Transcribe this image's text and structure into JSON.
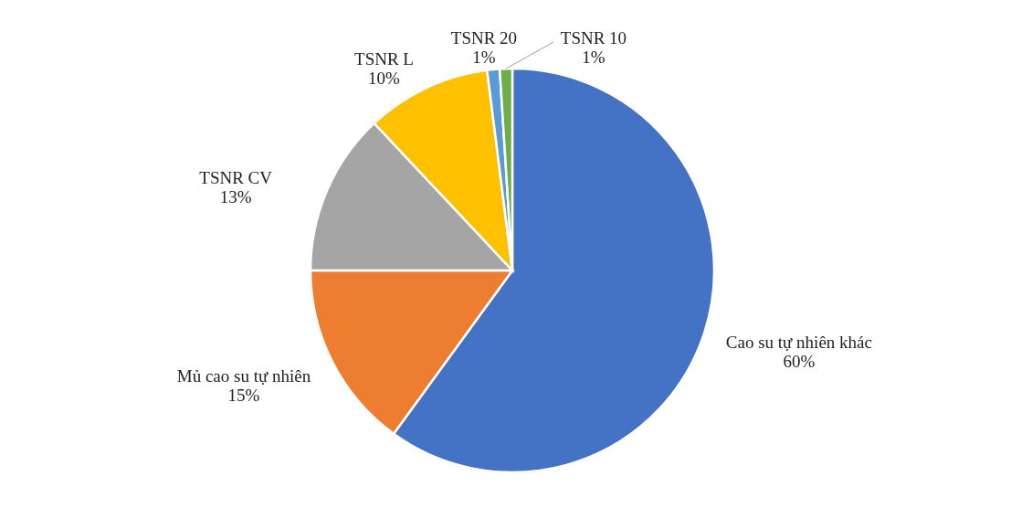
{
  "chart_data": {
    "type": "pie",
    "categories": [
      "Cao su tự nhiên khác",
      "Mủ cao su tự nhiên",
      "TSNR CV",
      "TSNR L",
      "TSNR 20",
      "TSNR 10"
    ],
    "values": [
      60,
      15,
      13,
      10,
      1,
      1
    ],
    "value_labels": [
      "60%",
      "15%",
      "13%",
      "10%",
      "1%",
      "1%"
    ],
    "colors": [
      "#4472c4",
      "#ed7d31",
      "#a5a5a5",
      "#ffc000",
      "#5b9bd5",
      "#70ad47"
    ]
  }
}
